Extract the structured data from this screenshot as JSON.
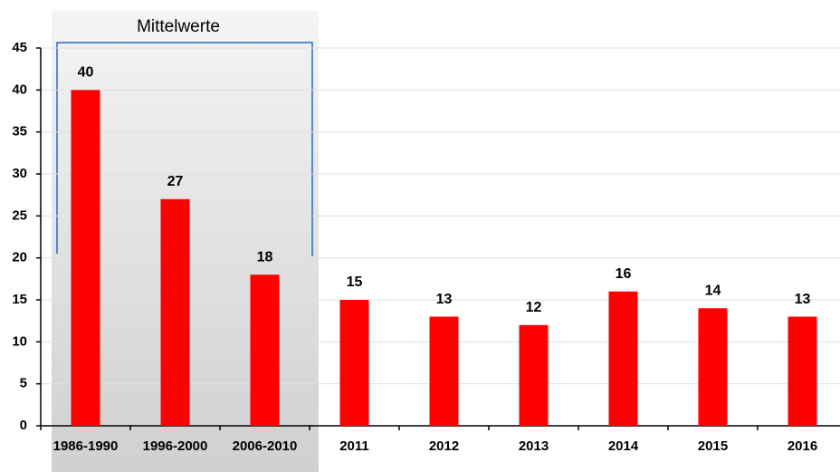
{
  "chart_data": {
    "type": "bar",
    "annotation": "Mittelwerte",
    "categories": [
      "1986-1990",
      "1996-2000",
      "2006-2010",
      "2011",
      "2012",
      "2013",
      "2014",
      "2015",
      "2016"
    ],
    "values": [
      40,
      27,
      18,
      15,
      13,
      12,
      16,
      14,
      13
    ],
    "color": "#ff0000",
    "ylim": [
      0,
      45
    ],
    "yticks": [
      0,
      5,
      10,
      15,
      20,
      25,
      30,
      35,
      40,
      45
    ],
    "grid": true
  }
}
